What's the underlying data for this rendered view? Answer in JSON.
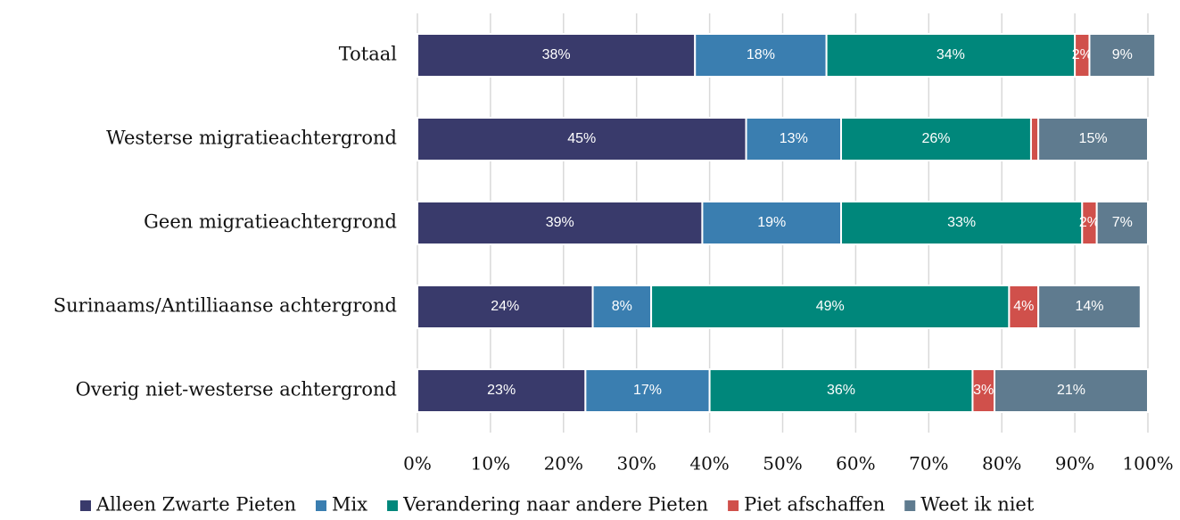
{
  "chart_data": {
    "type": "stacked_barh",
    "categories": [
      "Totaal",
      "Westerse migratieachtergrond",
      "Geen migratieachtergrond",
      "Surinaams/Antilliaanse achtergrond",
      "Overig niet-westerse achtergrond"
    ],
    "series": [
      {
        "name": "Alleen Zwarte Pieten",
        "color": "#393a6b",
        "values": [
          38,
          45,
          39,
          24,
          23
        ],
        "value_labels": [
          "38%",
          "45%",
          "39%",
          "24%",
          "23%"
        ]
      },
      {
        "name": "Mix",
        "color": "#3a7eb0",
        "values": [
          18,
          13,
          19,
          8,
          17
        ],
        "value_labels": [
          "18%",
          "13%",
          "19%",
          "8%",
          "17%"
        ]
      },
      {
        "name": "Verandering naar andere Pieten",
        "color": "#00877b",
        "values": [
          34,
          26,
          33,
          49,
          36
        ],
        "value_labels": [
          "34%",
          "26%",
          "33%",
          "49%",
          "36%"
        ]
      },
      {
        "name": "Piet afschaffen",
        "color": "#d0504b",
        "values": [
          2,
          1,
          2,
          4,
          3
        ],
        "value_labels": [
          "2%",
          null,
          "2%",
          "4%",
          "3%"
        ]
      },
      {
        "name": "Weet ik niet",
        "color": "#5f7b8f",
        "values": [
          9,
          15,
          7,
          14,
          21
        ],
        "value_labels": [
          "9%",
          "15%",
          "7%",
          "14%",
          "21%"
        ]
      }
    ],
    "xlim": [
      0,
      100
    ],
    "xticks": [
      {
        "value": 0,
        "label": "0%"
      },
      {
        "value": 10,
        "label": "10%"
      },
      {
        "value": 20,
        "label": "20%"
      },
      {
        "value": 30,
        "label": "30%"
      },
      {
        "value": 40,
        "label": "40%"
      },
      {
        "value": 50,
        "label": "50%"
      },
      {
        "value": 60,
        "label": "60%"
      },
      {
        "value": 70,
        "label": "70%"
      },
      {
        "value": 80,
        "label": "80%"
      },
      {
        "value": 90,
        "label": "90%"
      },
      {
        "value": 100,
        "label": "100%"
      }
    ],
    "grid": true,
    "legend": "bottom"
  }
}
